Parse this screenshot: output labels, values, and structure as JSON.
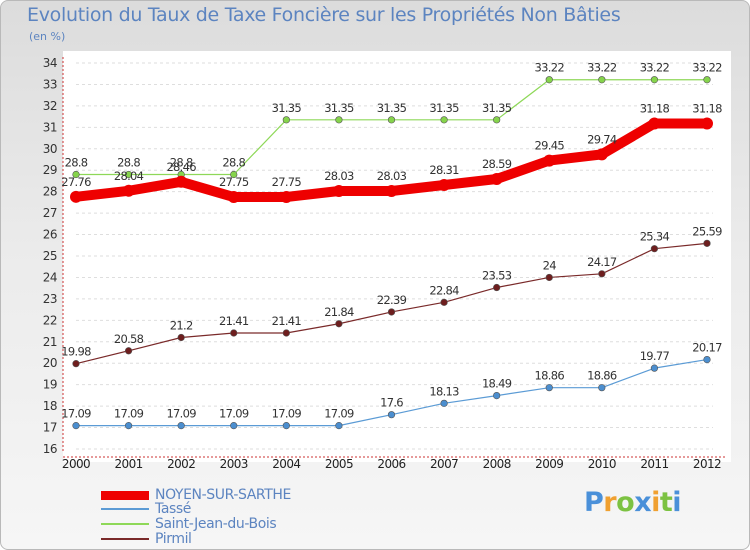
{
  "chart_data": {
    "type": "line",
    "title": "Evolution du Taux de Taxe Foncière sur les Propriétés Non Bâties",
    "unit_label": "(en %)",
    "xlabel": "",
    "ylabel": "",
    "x": [
      "2000",
      "2001",
      "2002",
      "2003",
      "2004",
      "2005",
      "2006",
      "2007",
      "2008",
      "2009",
      "2010",
      "2011",
      "2012"
    ],
    "ylim": [
      16,
      34
    ],
    "yticks": [
      "16",
      "17",
      "18",
      "19",
      "20",
      "21",
      "22",
      "23",
      "24",
      "25",
      "26",
      "27",
      "28",
      "29",
      "30",
      "31",
      "32",
      "33",
      "34"
    ],
    "grid": "horizontal-dashed",
    "series": [
      {
        "name": "Saint-Jean-du-Bois",
        "color": "#8ed858",
        "marker_color": "#86d44c",
        "values": [
          28.8,
          28.8,
          28.8,
          28.8,
          31.35,
          31.35,
          31.35,
          31.35,
          31.35,
          33.22,
          33.22,
          33.22,
          33.22
        ],
        "labels": [
          "28.8",
          "28.8",
          "28.8",
          "28.8",
          "31.35",
          "31.35",
          "31.35",
          "31.35",
          "31.35",
          "33.22",
          "33.22",
          "33.22",
          "33.22"
        ]
      },
      {
        "name": "Tassé",
        "color": "#5b9bd5",
        "marker_color": "#4b8ecf",
        "values": [
          17.09,
          17.09,
          17.09,
          17.09,
          17.09,
          17.09,
          17.6,
          18.13,
          18.49,
          18.86,
          18.86,
          19.77,
          20.17
        ],
        "labels": [
          "17.09",
          "17.09",
          "17.09",
          "17.09",
          "17.09",
          "17.09",
          "17.6",
          "18.13",
          "18.49",
          "18.86",
          "18.86",
          "19.77",
          "20.17"
        ]
      },
      {
        "name": "Pirmil",
        "color": "#7a2a2a",
        "marker_color": "#6e1e1e",
        "values": [
          19.98,
          20.58,
          21.2,
          21.41,
          21.41,
          21.84,
          22.39,
          22.84,
          23.53,
          24,
          24.17,
          25.34,
          25.59
        ],
        "labels": [
          "19.98",
          "20.58",
          "21.2",
          "21.41",
          "21.41",
          "21.84",
          "22.39",
          "22.84",
          "23.53",
          "24",
          "24.17",
          "25.34",
          "25.59"
        ]
      },
      {
        "name": "NOYEN-SUR-SARTHE",
        "color": "#ee0000",
        "marker_color": "#ee0000",
        "bold": true,
        "values": [
          27.76,
          28.04,
          28.46,
          27.75,
          27.75,
          28.03,
          28.03,
          28.31,
          28.59,
          29.45,
          29.74,
          31.18,
          31.18
        ],
        "labels": [
          "27.76",
          "28.04",
          "28.46",
          "27.75",
          "27.75",
          "28.03",
          "28.03",
          "28.31",
          "28.59",
          "29.45",
          "29.74",
          "31.18",
          "31.18"
        ]
      }
    ],
    "legend_order": [
      "NOYEN-SUR-SARTHE",
      "Tassé",
      "Saint-Jean-du-Bois",
      "Pirmil"
    ],
    "legend_position": "bottom-left"
  },
  "brand": {
    "letters": [
      "P",
      "r",
      "o",
      "x",
      "i",
      "t",
      "i"
    ],
    "colors": [
      "#4a90d9",
      "#f0a030",
      "#7cc242",
      "#4a90d9",
      "#f0a030",
      "#7cc242",
      "#4a90d9"
    ]
  }
}
